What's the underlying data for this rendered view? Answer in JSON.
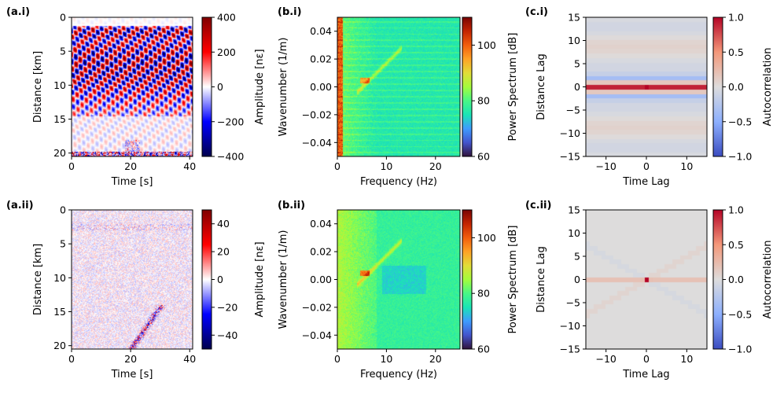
{
  "chart_data": [
    {
      "id": "a_i",
      "type": "heatmap",
      "panel_label": "(a.i)",
      "xlabel": "Time [s]",
      "ylabel": "Distance [km]",
      "xlim": [
        0,
        41
      ],
      "ylim": [
        20.5,
        0
      ],
      "xticks": [
        0,
        20,
        40
      ],
      "yticks": [
        0,
        5,
        10,
        15,
        20
      ],
      "colorbar_label": "Amplitude [nε]",
      "colorbar_range": [
        -400,
        400
      ],
      "colorbar_ticks": [
        "400",
        "200",
        "0",
        "−200",
        "−400"
      ],
      "colorbar_tick_values": [
        400,
        200,
        0,
        -200,
        -400
      ],
      "colormap": "seismic",
      "grid": false
    },
    {
      "id": "b_i",
      "type": "heatmap",
      "panel_label": "(b.i)",
      "xlabel": "Frequency (Hz)",
      "ylabel": "Wavenumber (1/m)",
      "xlim": [
        0,
        25
      ],
      "ylim": [
        -0.05,
        0.05
      ],
      "xticks": [
        0,
        10,
        20
      ],
      "yticks": [
        "0.04",
        "0.02",
        "0.00",
        "−0.02",
        "−0.04"
      ],
      "ytick_values": [
        0.04,
        0.02,
        0.0,
        -0.02,
        -0.04
      ],
      "colorbar_label": "Power Spectrum [dB]",
      "colorbar_range": [
        60,
        110
      ],
      "colorbar_ticks": [
        "100",
        "80",
        "60"
      ],
      "colorbar_tick_values": [
        100,
        80,
        60
      ],
      "colormap": "turbo",
      "grid": false
    },
    {
      "id": "c_i",
      "type": "heatmap",
      "panel_label": "(c.i)",
      "xlabel": "Time Lag",
      "ylabel": "Distance Lag",
      "xlim": [
        -15,
        15
      ],
      "ylim": [
        -15,
        15
      ],
      "xticks": [
        "−10",
        "0",
        "10"
      ],
      "xtick_values": [
        -10,
        0,
        10
      ],
      "yticks": [
        "15",
        "10",
        "5",
        "0",
        "−5",
        "−10",
        "−15"
      ],
      "ytick_values": [
        15,
        10,
        5,
        0,
        -5,
        -10,
        -15
      ],
      "colorbar_label": "Autocorrelation",
      "colorbar_range": [
        -1,
        1
      ],
      "colorbar_ticks": [
        "1.0",
        "0.5",
        "0.0",
        "−0.5",
        "−1.0"
      ],
      "colorbar_tick_values": [
        1,
        0.5,
        0,
        -0.5,
        -1
      ],
      "colormap": "coolwarm",
      "grid": false
    },
    {
      "id": "a_ii",
      "type": "heatmap",
      "panel_label": "(a.ii)",
      "xlabel": "Time [s]",
      "ylabel": "Distance [km]",
      "xlim": [
        0,
        41
      ],
      "ylim": [
        20.5,
        0
      ],
      "xticks": [
        0,
        20,
        40
      ],
      "yticks": [
        0,
        5,
        10,
        15,
        20
      ],
      "colorbar_label": "Amplitude [nε]",
      "colorbar_range": [
        -50,
        50
      ],
      "colorbar_ticks": [
        "40",
        "20",
        "0",
        "−20",
        "−40"
      ],
      "colorbar_tick_values": [
        40,
        20,
        0,
        -20,
        -40
      ],
      "colormap": "seismic",
      "grid": false
    },
    {
      "id": "b_ii",
      "type": "heatmap",
      "panel_label": "(b.ii)",
      "xlabel": "Frequency (Hz)",
      "ylabel": "Wavenumber (1/m)",
      "xlim": [
        0,
        25
      ],
      "ylim": [
        -0.05,
        0.05
      ],
      "xticks": [
        0,
        10,
        20
      ],
      "yticks": [
        "0.04",
        "0.02",
        "0.00",
        "−0.02",
        "−0.04"
      ],
      "ytick_values": [
        0.04,
        0.02,
        0.0,
        -0.02,
        -0.04
      ],
      "colorbar_label": "Power Spectrum [dB]",
      "colorbar_range": [
        60,
        110
      ],
      "colorbar_ticks": [
        "100",
        "80",
        "60"
      ],
      "colorbar_tick_values": [
        100,
        80,
        60
      ],
      "colormap": "turbo",
      "grid": false
    },
    {
      "id": "c_ii",
      "type": "heatmap",
      "panel_label": "(c.ii)",
      "xlabel": "Time Lag",
      "ylabel": "Distance Lag",
      "xlim": [
        -15,
        15
      ],
      "ylim": [
        -15,
        15
      ],
      "xticks": [
        "−10",
        "0",
        "10"
      ],
      "xtick_values": [
        -10,
        0,
        10
      ],
      "yticks": [
        "15",
        "10",
        "5",
        "0",
        "−5",
        "−10",
        "−15"
      ],
      "ytick_values": [
        15,
        10,
        5,
        0,
        -5,
        -10,
        -15
      ],
      "colorbar_label": "Autocorrelation",
      "colorbar_range": [
        -1,
        1
      ],
      "colorbar_ticks": [
        "1.0",
        "0.5",
        "0.0",
        "−0.5",
        "−1.0"
      ],
      "colorbar_tick_values": [
        1,
        0.5,
        0,
        -0.5,
        -1
      ],
      "colormap": "coolwarm",
      "grid": false
    }
  ]
}
